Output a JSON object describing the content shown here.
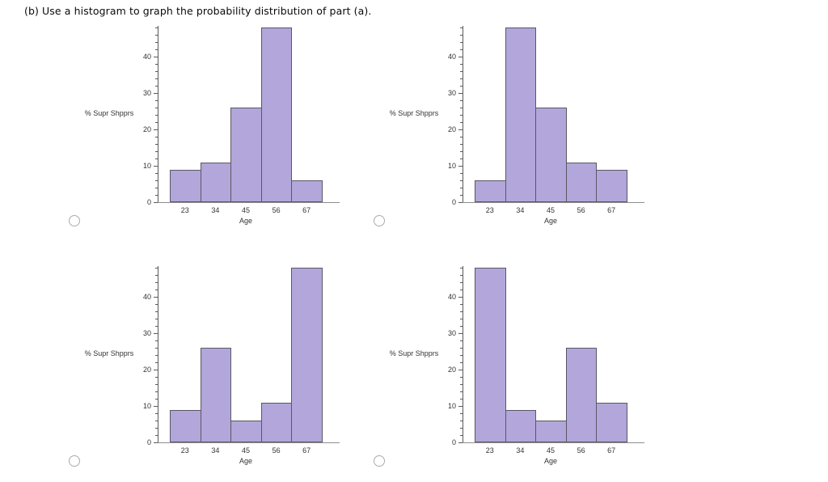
{
  "title": "(b) Use a histogram to graph the probability distribution of part (a).",
  "colors": {
    "bar_fill": "#b2a6da",
    "bar_border": "#5a5764",
    "axis_x": "#8e8e8e",
    "axis_y": "#5a5a5a",
    "text": "#333333"
  },
  "chart_data": [
    {
      "type": "bar",
      "position": "top-left",
      "xlabel": "Age",
      "ylabel": "% Supr Shpprs",
      "categories": [
        "23",
        "34",
        "45",
        "56",
        "67"
      ],
      "values": [
        9,
        11,
        26,
        48,
        6
      ],
      "yticks": [
        0,
        10,
        20,
        30,
        40
      ],
      "ylim": [
        0,
        48.5
      ],
      "minor_tick_step": 2,
      "grid": false,
      "legend": "none"
    },
    {
      "type": "bar",
      "position": "top-right",
      "xlabel": "Age",
      "ylabel": "% Supr Shpprs",
      "categories": [
        "23",
        "34",
        "45",
        "56",
        "67"
      ],
      "values": [
        6,
        48,
        26,
        11,
        9
      ],
      "yticks": [
        0,
        10,
        20,
        30,
        40
      ],
      "ylim": [
        0,
        48.5
      ],
      "minor_tick_step": 2,
      "grid": false,
      "legend": "none"
    },
    {
      "type": "bar",
      "position": "bottom-left",
      "xlabel": "Age",
      "ylabel": "% Supr Shpprs",
      "categories": [
        "23",
        "34",
        "45",
        "56",
        "67"
      ],
      "values": [
        9,
        26,
        6,
        11,
        48
      ],
      "yticks": [
        0,
        10,
        20,
        30,
        40
      ],
      "ylim": [
        0,
        48.5
      ],
      "minor_tick_step": 2,
      "grid": false,
      "legend": "none"
    },
    {
      "type": "bar",
      "position": "bottom-right",
      "xlabel": "Age",
      "ylabel": "% Supr Shpprs",
      "categories": [
        "23",
        "34",
        "45",
        "56",
        "67"
      ],
      "values": [
        48,
        9,
        6,
        26,
        11
      ],
      "yticks": [
        0,
        10,
        20,
        30,
        40
      ],
      "ylim": [
        0,
        48.5
      ],
      "minor_tick_step": 2,
      "grid": false,
      "legend": "none"
    }
  ],
  "options": [
    {
      "selected": false
    },
    {
      "selected": false
    },
    {
      "selected": false
    },
    {
      "selected": false
    }
  ]
}
